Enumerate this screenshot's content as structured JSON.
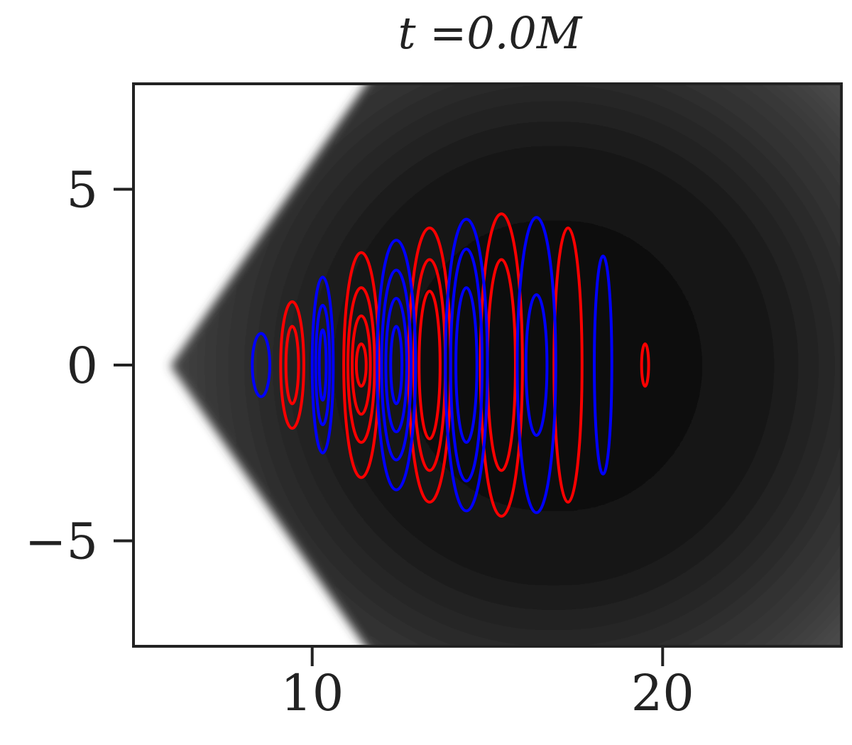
{
  "chart_data": {
    "type": "contour",
    "title": "t =0.0M",
    "xlim": [
      4.9,
      25.1
    ],
    "ylim": [
      -8,
      8
    ],
    "xticks": [
      10,
      20
    ],
    "yticks": [
      5,
      0,
      {
        "value": -5,
        "label": "−5"
      }
    ],
    "series": [
      {
        "color": "#ff0000",
        "x": [
          9.43,
          9.43,
          11.4,
          11.4,
          11.4,
          11.4,
          13.35,
          13.35,
          13.35,
          15.4,
          15.4,
          17.3,
          19.5
        ],
        "y": [
          0,
          0,
          0,
          0,
          0,
          0,
          0,
          0,
          0,
          0,
          0,
          0,
          0
        ],
        "rx": [
          0.33,
          0.18,
          0.5,
          0.38,
          0.26,
          0.14,
          0.6,
          0.45,
          0.3,
          0.6,
          0.4,
          0.4,
          0.1
        ],
        "ry": [
          1.8,
          1.1,
          3.2,
          2.2,
          1.4,
          0.6,
          3.9,
          3.0,
          2.1,
          4.3,
          3.0,
          3.9,
          0.6
        ]
      },
      {
        "color": "#0000ff",
        "x": [
          8.54,
          10.3,
          10.3,
          10.3,
          12.4,
          12.4,
          12.4,
          12.4,
          14.4,
          14.4,
          14.4,
          16.4,
          16.4,
          18.3
        ],
        "y": [
          0,
          0,
          0,
          0,
          0,
          0,
          0,
          0,
          0,
          0,
          0,
          0,
          0,
          0
        ],
        "rx": [
          0.25,
          0.3,
          0.2,
          0.1,
          0.55,
          0.42,
          0.3,
          0.16,
          0.6,
          0.45,
          0.3,
          0.55,
          0.3,
          0.25
        ],
        "ry": [
          0.9,
          2.5,
          1.7,
          1.0,
          3.55,
          2.7,
          1.9,
          1.1,
          4.15,
          3.3,
          2.2,
          4.2,
          2.0,
          3.1
        ]
      }
    ]
  }
}
